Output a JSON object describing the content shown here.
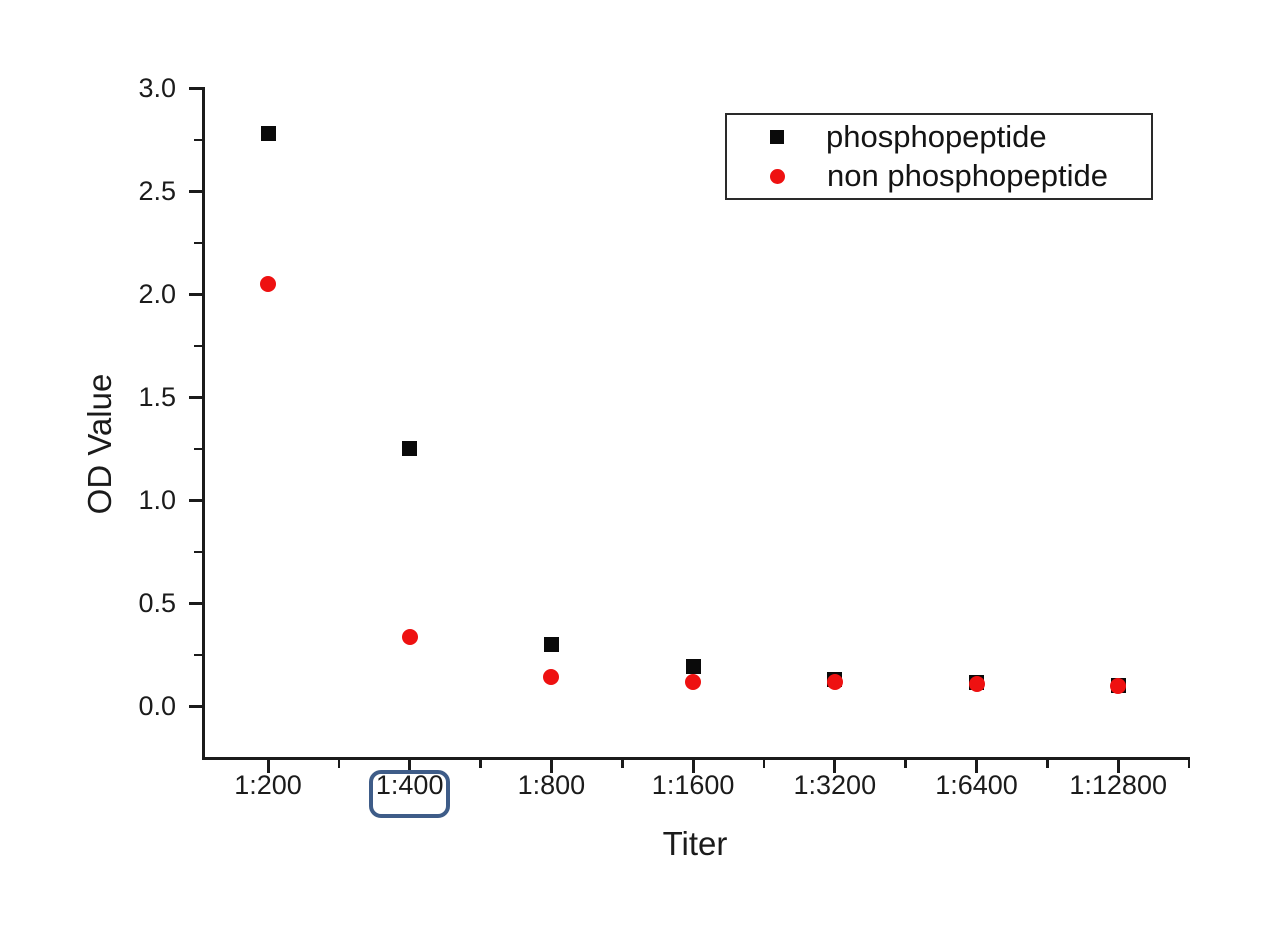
{
  "chart_data": {
    "type": "scatter",
    "title": "",
    "xlabel": "Titer",
    "ylabel": "OD Value",
    "categories": [
      "1:200",
      "1:400",
      "1:800",
      "1:1600",
      "1:3200",
      "1:6400",
      "1:12800"
    ],
    "series": [
      {
        "name": "phosphopeptide",
        "marker": "square",
        "color": "#0a0a0a",
        "values": [
          2.78,
          1.25,
          0.3,
          0.19,
          0.13,
          0.115,
          0.1
        ]
      },
      {
        "name": "non phosphopeptide",
        "marker": "circle",
        "color": "#ee1111",
        "values": [
          2.05,
          0.335,
          0.14,
          0.115,
          0.115,
          0.105,
          0.095
        ]
      }
    ],
    "ylim": [
      0,
      3.0
    ],
    "yticks": [
      "0.0",
      "0.5",
      "1.0",
      "1.5",
      "2.0",
      "2.5",
      "3.0"
    ],
    "y_minor_step": 0.25,
    "grid": false,
    "legend_position": "top-right",
    "annotation": {
      "type": "highlight-box",
      "target_tick": "1:400",
      "color": "#3e5c88"
    }
  },
  "legend": {
    "items": [
      {
        "label": "phosphopeptide",
        "marker": "square",
        "color": "#0a0a0a"
      },
      {
        "label": "non phosphopeptide",
        "marker": "circle",
        "color": "#ee1111"
      }
    ]
  }
}
